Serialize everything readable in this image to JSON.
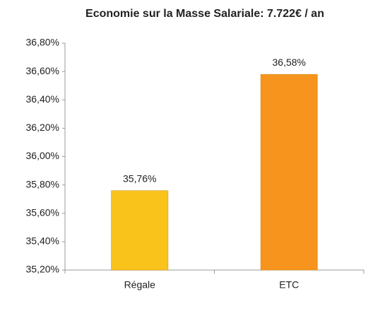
{
  "chart_data": {
    "type": "bar",
    "title": "Economie sur la Masse Salariale: 7.722€ / an",
    "categories": [
      "Régale",
      "ETC"
    ],
    "values": [
      35.76,
      36.58
    ],
    "value_labels": [
      "35,76%",
      "36,58%"
    ],
    "colors": [
      "#f9c31c",
      "#f7941d"
    ],
    "ylim": [
      35.2,
      36.8
    ],
    "yticks": [
      {
        "value": 35.2,
        "label": "35,20%"
      },
      {
        "value": 35.4,
        "label": "35,40%"
      },
      {
        "value": 35.6,
        "label": "35,60%"
      },
      {
        "value": 35.8,
        "label": "35,80%"
      },
      {
        "value": 36.0,
        "label": "36,00%"
      },
      {
        "value": 36.2,
        "label": "36,20%"
      },
      {
        "value": 36.4,
        "label": "36,40%"
      },
      {
        "value": 36.6,
        "label": "36,60%"
      },
      {
        "value": 36.8,
        "label": "36,80%"
      }
    ],
    "grid": false
  }
}
